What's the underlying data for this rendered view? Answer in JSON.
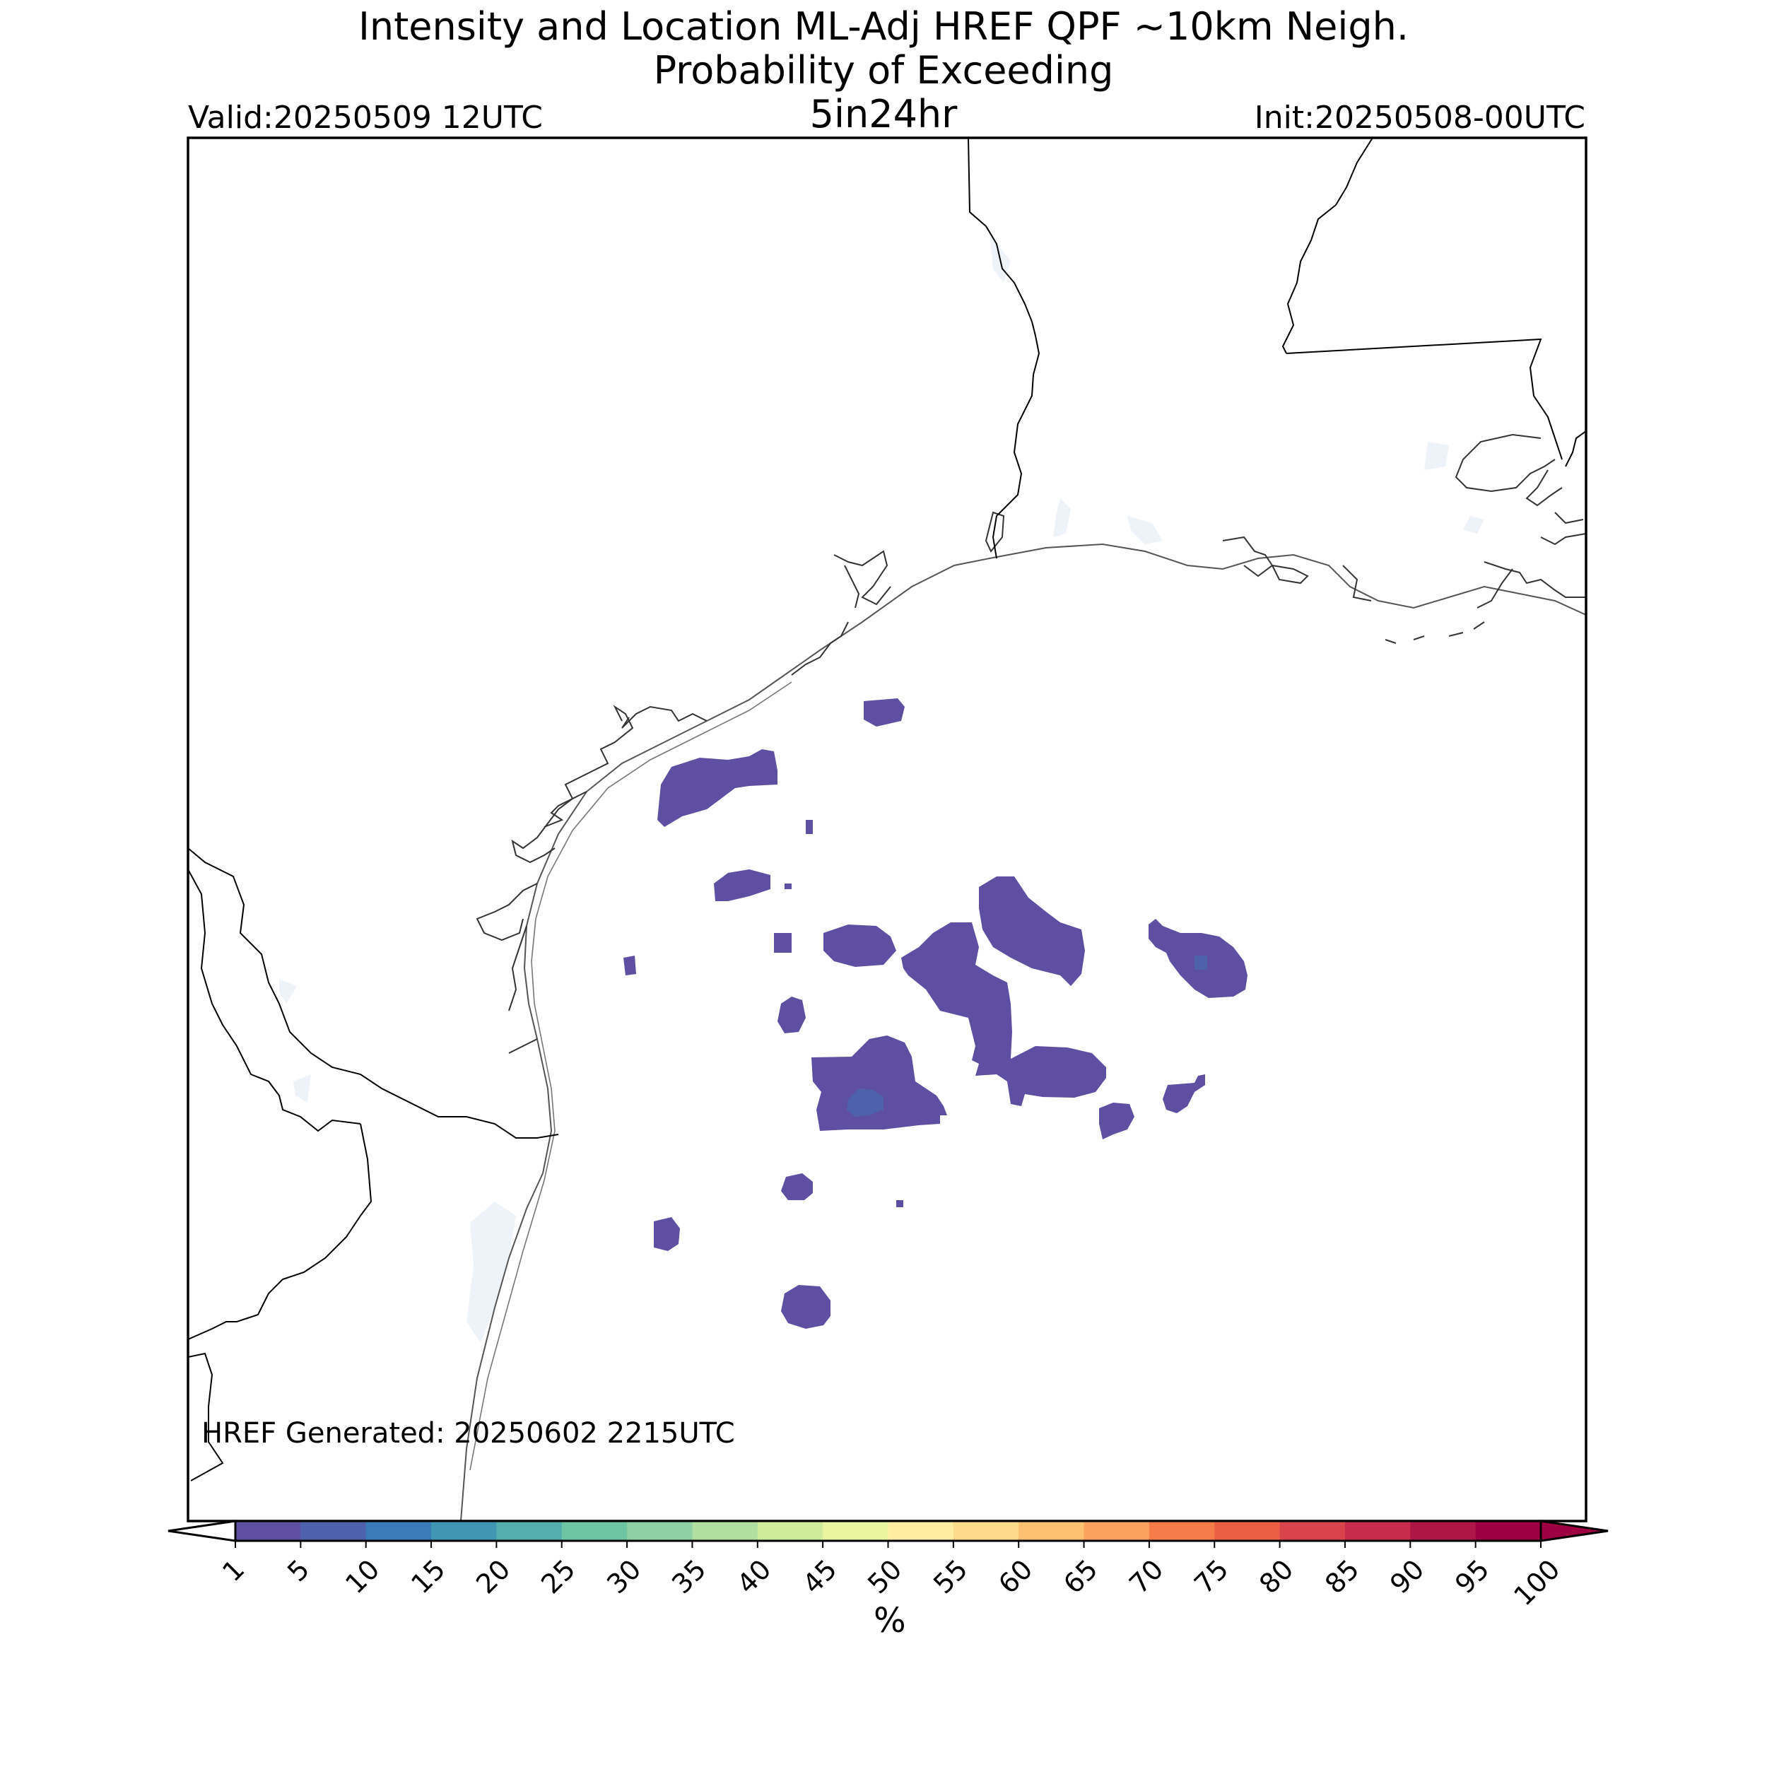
{
  "title": {
    "line1": "Intensity and Location ML-Adj HREF QPF ~10km Neigh.",
    "line2": "Probability of Exceeding",
    "threshold": "5in24hr"
  },
  "valid": "Valid:20250509 12UTC",
  "init": "Init:20250508-00UTC",
  "generated": "HREF Generated: 20250602 2215UTC",
  "colorbar": {
    "unit": "%",
    "ticks": [
      "1",
      "5",
      "10",
      "15",
      "20",
      "25",
      "30",
      "35",
      "40",
      "45",
      "50",
      "55",
      "60",
      "65",
      "70",
      "75",
      "80",
      "85",
      "90",
      "95",
      "100"
    ],
    "colors": [
      "#5e4fa2",
      "#4e62ab",
      "#3a7cb8",
      "#4196b4",
      "#54aead",
      "#6ec5a4",
      "#8dd1a4",
      "#b1df9f",
      "#cfec9c",
      "#e9f69f",
      "#feeda2",
      "#fedb8a",
      "#fdc171",
      "#fba25f",
      "#f67d4a",
      "#eb6044",
      "#d9444c",
      "#c72c4d",
      "#ad1646",
      "#9e0142"
    ],
    "under_color": "#ffffff",
    "over_color": "#9e0142"
  },
  "colors": {
    "prob_low": "#5e4fa2",
    "prob_mid": "#4e62ab",
    "coast": "#555555",
    "border": "#000000",
    "water": "#eef3f9"
  }
}
